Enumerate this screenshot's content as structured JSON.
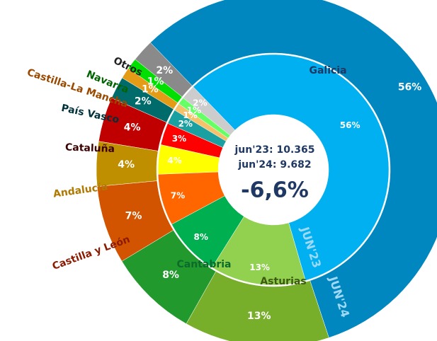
{
  "chart_data": {
    "type": "donut",
    "categories": [
      "Galicia",
      "Asturias",
      "Cantabria",
      "Castilla y León",
      "Andalucía",
      "Cataluña",
      "País Vasco",
      "Castilla-La Mancha",
      "Navarra",
      "Otros"
    ],
    "series": [
      {
        "name": "JUN'23",
        "values": [
          56,
          13,
          8,
          7,
          4,
          3,
          2,
          1,
          1,
          2
        ],
        "value_labels": [
          "56%",
          "13%",
          "8%",
          "7%",
          "4%",
          "3%",
          "2%",
          "1%",
          "1%",
          "2%"
        ],
        "colors": [
          "#00b0f0",
          "#92d050",
          "#00b050",
          "#ff6600",
          "#ffff00",
          "#ff0000",
          "#1aa0a0",
          "#f5c26b",
          "#66ff66",
          "#cccccc"
        ]
      },
      {
        "name": "JUN'24",
        "values": [
          56,
          13,
          8,
          7,
          4,
          4,
          2,
          1,
          1,
          2
        ],
        "value_labels": [
          "56%",
          "13%",
          "8%",
          "7%",
          "4%",
          "4%",
          "2%",
          "1%",
          "1%",
          "2%"
        ],
        "colors": [
          "#0087bf",
          "#77ae2a",
          "#22992c",
          "#d35400",
          "#bf8f00",
          "#c00000",
          "#006b6b",
          "#e49b16",
          "#00e000",
          "#8a8a8a"
        ]
      }
    ],
    "center_labels": [
      "jun'23: 10.365",
      "jun'24: 9.682"
    ],
    "change": "-6,6%"
  }
}
